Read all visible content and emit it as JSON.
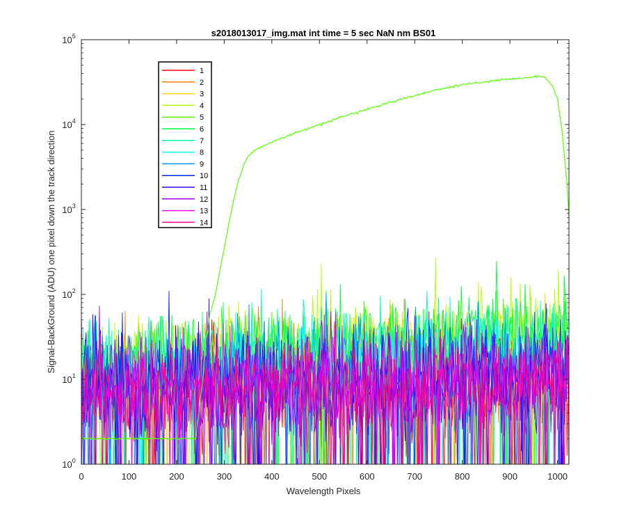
{
  "chart_data": {
    "type": "line",
    "title": "s2018013017_img.mat int time = 5 sec  NaN nm BS01",
    "xlabel": "Wavelength Pixels",
    "ylabel": "Signal-BackGround (ADU) one pixel down the track direction",
    "xlim": [
      0,
      1024
    ],
    "ylim": [
      1,
      100000
    ],
    "yscale": "log",
    "grid": false,
    "legend_position": "top-left",
    "x_ticks": [
      {
        "value": 0,
        "label": "0"
      },
      {
        "value": 100,
        "label": "100"
      },
      {
        "value": 200,
        "label": "200"
      },
      {
        "value": 300,
        "label": "300"
      },
      {
        "value": 400,
        "label": "400"
      },
      {
        "value": 500,
        "label": "500"
      },
      {
        "value": 600,
        "label": "600"
      },
      {
        "value": 700,
        "label": "700"
      },
      {
        "value": 800,
        "label": "800"
      },
      {
        "value": 900,
        "label": "900"
      },
      {
        "value": 1000,
        "label": "1000"
      }
    ],
    "y_ticks": [
      {
        "value": 1,
        "base": "10",
        "exp": "0"
      },
      {
        "value": 10,
        "base": "10",
        "exp": "1"
      },
      {
        "value": 100,
        "base": "10",
        "exp": "2"
      },
      {
        "value": 1000,
        "base": "10",
        "exp": "3"
      },
      {
        "value": 10000,
        "base": "10",
        "exp": "4"
      },
      {
        "value": 100000,
        "base": "10",
        "exp": "5"
      }
    ],
    "bright_series": {
      "name": "5",
      "x": [
        0,
        240,
        255,
        262,
        270,
        280,
        290,
        300,
        310,
        320,
        330,
        340,
        350,
        360,
        370,
        380,
        400,
        450,
        500,
        550,
        600,
        650,
        700,
        750,
        800,
        850,
        900,
        930,
        950,
        960,
        970,
        980,
        990,
        1000,
        1010,
        1020,
        1024
      ],
      "y": [
        2,
        2,
        10,
        30,
        60,
        90,
        180,
        350,
        700,
        1300,
        2200,
        3200,
        4200,
        4800,
        5200,
        5500,
        6200,
        8000,
        10000,
        12500,
        15000,
        18500,
        22000,
        26000,
        29500,
        32000,
        34500,
        35500,
        36500,
        37000,
        36500,
        33000,
        28000,
        20000,
        8000,
        2000,
        800
      ]
    },
    "series": [
      {
        "name": "1",
        "color": "#ff0000",
        "mean_start": 8,
        "mean_end": 10,
        "spread": 0.45
      },
      {
        "name": "2",
        "color": "#ff7f00",
        "mean_start": 9,
        "mean_end": 12,
        "spread": 0.45
      },
      {
        "name": "3",
        "color": "#ffd000",
        "mean_start": 11,
        "mean_end": 30,
        "spread": 0.4
      },
      {
        "name": "4",
        "color": "#b4ff00",
        "mean_start": 12,
        "mean_end": 40,
        "spread": 0.35
      },
      {
        "name": "5",
        "color": "#55ff00",
        "mean_start": 13,
        "mean_end": 20,
        "spread": 0.4
      },
      {
        "name": "6",
        "color": "#00ff3c",
        "mean_start": 13,
        "mean_end": 45,
        "spread": 0.35
      },
      {
        "name": "7",
        "color": "#00ffa0",
        "mean_start": 12,
        "mean_end": 30,
        "spread": 0.4
      },
      {
        "name": "8",
        "color": "#00ffff",
        "mean_start": 11,
        "mean_end": 22,
        "spread": 0.4
      },
      {
        "name": "9",
        "color": "#0096ff",
        "mean_start": 10,
        "mean_end": 15,
        "spread": 0.45
      },
      {
        "name": "10",
        "color": "#0028ff",
        "mean_start": 9,
        "mean_end": 12,
        "spread": 0.45
      },
      {
        "name": "11",
        "color": "#3c00ff",
        "mean_start": 8,
        "mean_end": 10,
        "spread": 0.45
      },
      {
        "name": "12",
        "color": "#a000ff",
        "mean_start": 8,
        "mean_end": 10,
        "spread": 0.45
      },
      {
        "name": "13",
        "color": "#ff00ff",
        "mean_start": 8,
        "mean_end": 10,
        "spread": 0.45
      },
      {
        "name": "14",
        "color": "#ff0080",
        "mean_start": 7,
        "mean_end": 9,
        "spread": 0.45
      }
    ]
  }
}
